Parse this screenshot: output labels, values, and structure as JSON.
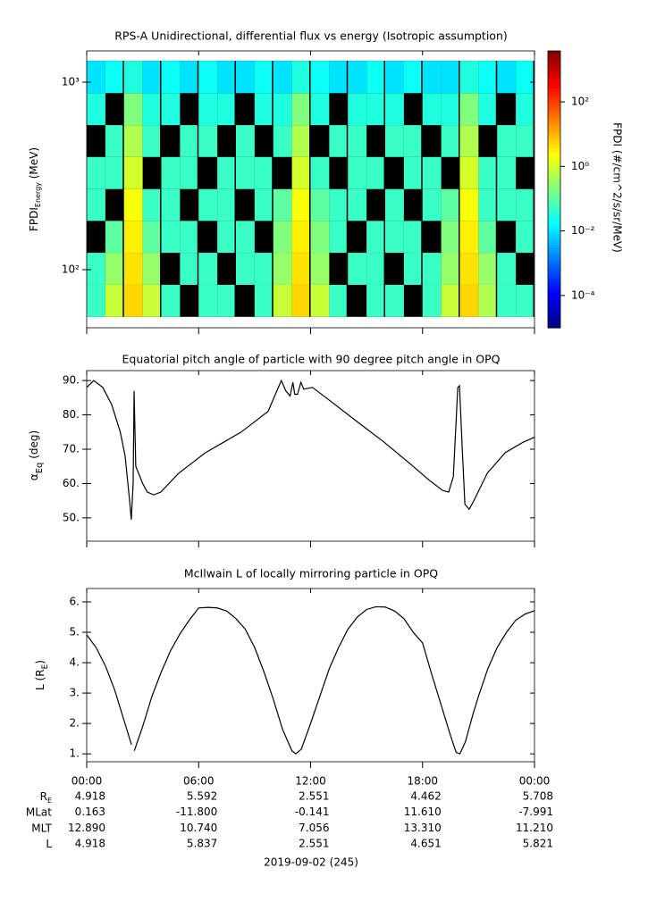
{
  "chart_data": [
    {
      "type": "heatmap",
      "title": "RPS-A Unidirectional, differential flux vs energy (Isotropic assumption)",
      "ylabel": {
        "text": "FPDI",
        "sub": "Energy",
        "after": " (MeV)"
      },
      "xlim": [
        0,
        24
      ],
      "ylim": [
        49,
        1468
      ],
      "ylog": true,
      "yticks": [
        {
          "value": 100,
          "label": "10²"
        },
        {
          "value": 1000,
          "label": "10³"
        }
      ],
      "xbins": [
        0,
        1,
        2,
        3,
        4,
        5,
        6,
        7,
        8,
        9,
        10,
        11,
        12,
        13,
        14,
        15,
        16,
        17,
        18,
        19,
        20,
        21,
        22,
        23,
        24
      ],
      "ybins": [
        56,
        83,
        123,
        182,
        269,
        399,
        590,
        874,
        1300
      ],
      "z": [
        [
          0.05,
          0.8,
          5,
          0.8,
          0.05,
          null,
          0.05,
          0.05,
          null,
          0.05,
          0.8,
          5,
          0.8,
          0.05,
          null,
          0.05,
          0.05,
          null,
          0.05,
          0.8,
          5,
          0.5,
          0.05,
          0.05
        ],
        [
          0.05,
          0.3,
          4,
          0.3,
          null,
          0.05,
          0.05,
          null,
          0.05,
          0.05,
          0.3,
          4,
          0.3,
          null,
          0.05,
          0.05,
          null,
          0.05,
          0.05,
          0.3,
          4,
          0.3,
          0.05,
          null
        ],
        [
          null,
          0.1,
          3,
          0.1,
          0.05,
          0.05,
          null,
          0.05,
          0.05,
          null,
          0.2,
          3,
          0.2,
          0.05,
          null,
          0.05,
          0.05,
          0.05,
          null,
          0.2,
          3,
          0.1,
          null,
          0.05
        ],
        [
          0.05,
          null,
          2,
          0.05,
          0.05,
          null,
          0.05,
          0.05,
          null,
          0.05,
          0.1,
          2,
          0.1,
          0.05,
          0.05,
          null,
          0.05,
          null,
          0.05,
          0.1,
          2,
          0.05,
          0.05,
          0.05
        ],
        [
          0.05,
          0.05,
          1,
          null,
          0.05,
          0.05,
          null,
          0.05,
          0.05,
          0.05,
          null,
          1,
          0.05,
          null,
          0.05,
          0.05,
          null,
          0.05,
          0.05,
          null,
          1,
          0.05,
          0.05,
          null
        ],
        [
          null,
          0.05,
          0.5,
          0.05,
          null,
          0.05,
          0.05,
          null,
          0.05,
          null,
          0.05,
          0.5,
          null,
          0.05,
          0.05,
          null,
          0.05,
          0.05,
          null,
          0.05,
          0.5,
          null,
          0.05,
          0.05
        ],
        [
          0.03,
          null,
          0.2,
          0.03,
          0.03,
          null,
          0.03,
          0.03,
          null,
          0.03,
          0.03,
          0.2,
          0.03,
          null,
          0.03,
          0.03,
          0.03,
          null,
          0.03,
          0.03,
          0.2,
          0.03,
          null,
          0.03
        ],
        [
          0.01,
          0.02,
          0.03,
          0.01,
          0.02,
          0.01,
          0.02,
          0.01,
          0.01,
          0.02,
          0.01,
          0.03,
          0.02,
          0.01,
          0.01,
          0.02,
          0.01,
          0.02,
          0.01,
          0.01,
          0.03,
          0.02,
          0.01,
          0.02
        ]
      ],
      "zlog": true,
      "zlim": [
        1e-05,
        3800
      ],
      "colormap": "jet",
      "zticks": [
        {
          "value": 0.0001,
          "label": "10⁻⁴"
        },
        {
          "value": 0.01,
          "label": "10⁻²"
        },
        {
          "value": 1,
          "label": "10⁰"
        },
        {
          "value": 100,
          "label": "10²"
        }
      ],
      "zlabel": "FPDI (#/cm^2/s/sr/MeV)"
    },
    {
      "type": "line",
      "title": "Equatorial pitch angle of particle with 90 degree pitch angle in OPQ",
      "ylabel": {
        "text": "α",
        "sub": "Eq",
        "after": " (deg)"
      },
      "xlim": [
        0,
        24
      ],
      "ylim": [
        43.2,
        92.9
      ],
      "yticks": [
        {
          "value": 50,
          "label": "50."
        },
        {
          "value": 60,
          "label": "60."
        },
        {
          "value": 70,
          "label": "70."
        },
        {
          "value": 80,
          "label": "80."
        },
        {
          "value": 90,
          "label": "90."
        }
      ],
      "color": "#000000",
      "x": [
        0,
        0.38,
        0.86,
        1.34,
        1.8,
        2.06,
        2.3,
        2.39,
        2.49,
        2.54,
        2.63,
        2.78,
        3.0,
        3.25,
        3.6,
        3.97,
        4.93,
        6.37,
        8.28,
        9.72,
        10.43,
        10.67,
        10.9,
        11.05,
        11.15,
        11.3,
        11.48,
        11.63,
        12.1,
        13.07,
        14.5,
        15.95,
        17.39,
        18.35,
        19.07,
        19.4,
        19.65,
        19.89,
        19.98,
        20.13,
        20.27,
        20.5,
        20.75,
        21.47,
        22.43,
        23.38,
        24
      ],
      "y": [
        88,
        90,
        88,
        83,
        75,
        68,
        55,
        49.5,
        60,
        87,
        65,
        63,
        60,
        57.5,
        56.7,
        57.5,
        63,
        69,
        75,
        81,
        90,
        87,
        85.5,
        89.5,
        86,
        86,
        89.5,
        87.5,
        88,
        84,
        78,
        72,
        65.5,
        61,
        58,
        57.5,
        62,
        88,
        88.5,
        70,
        54,
        52.5,
        55,
        63,
        69,
        72,
        73.5
      ]
    },
    {
      "type": "line",
      "title": "McIlwain L of locally mirroring particle in OPQ",
      "ylabel": {
        "text": "L (R",
        "sub": "E",
        "after": ")"
      },
      "xlim": [
        0,
        24
      ],
      "ylim": [
        0.74,
        6.44
      ],
      "yticks": [
        {
          "value": 1,
          "label": "1."
        },
        {
          "value": 2,
          "label": "2."
        },
        {
          "value": 3,
          "label": "3."
        },
        {
          "value": 4,
          "label": "4."
        },
        {
          "value": 5,
          "label": "5."
        },
        {
          "value": 6,
          "label": "6."
        }
      ],
      "xticks": [
        {
          "value": 0,
          "label": "00:00"
        },
        {
          "value": 6,
          "label": "06:00"
        },
        {
          "value": 12,
          "label": "12:00"
        },
        {
          "value": 18,
          "label": "18:00"
        },
        {
          "value": 24,
          "label": "00:00"
        }
      ],
      "color": "#000000",
      "x": [
        0,
        0.5,
        1,
        1.5,
        2,
        2.4,
        null,
        2.55,
        3,
        3.5,
        4,
        4.5,
        5,
        5.5,
        6,
        6.5,
        7,
        7.5,
        8,
        8.5,
        9,
        9.5,
        10,
        10.5,
        11,
        11.2,
        11.5,
        12,
        12.5,
        13,
        13.5,
        14,
        14.5,
        15,
        15.5,
        16,
        16.5,
        17,
        17.5,
        18,
        18.5,
        19,
        19.5,
        19.8,
        20,
        20.3,
        20.7,
        21,
        21.5,
        22,
        22.5,
        23,
        23.5,
        24
      ],
      "y": [
        4.92,
        4.5,
        3.9,
        3.1,
        2.1,
        1.3,
        null,
        1.1,
        1.9,
        2.9,
        3.7,
        4.4,
        4.95,
        5.4,
        5.8,
        5.82,
        5.8,
        5.7,
        5.45,
        5.1,
        4.5,
        3.7,
        2.8,
        1.8,
        1.1,
        1.0,
        1.15,
        2.0,
        2.9,
        3.8,
        4.5,
        5.1,
        5.5,
        5.75,
        5.84,
        5.83,
        5.7,
        5.45,
        5.0,
        4.65,
        3.6,
        2.6,
        1.6,
        1.05,
        1.0,
        1.4,
        2.3,
        2.9,
        3.8,
        4.5,
        5.0,
        5.4,
        5.6,
        5.71
      ]
    }
  ],
  "ephemeris": {
    "rows": [
      {
        "label": "R",
        "label_sub": "E",
        "values": [
          "4.918",
          "5.592",
          "2.551",
          "4.462",
          "5.708"
        ]
      },
      {
        "label": "MLat",
        "values": [
          "0.163",
          "-11.800",
          "-0.141",
          "11.610",
          "-7.991"
        ]
      },
      {
        "label": "MLT",
        "values": [
          "12.890",
          "10.740",
          "7.056",
          "13.310",
          "11.210"
        ]
      },
      {
        "label": "L",
        "values": [
          "4.918",
          "5.837",
          "2.551",
          "4.651",
          "5.821"
        ]
      }
    ],
    "date": "2019-09-02 (245)"
  }
}
